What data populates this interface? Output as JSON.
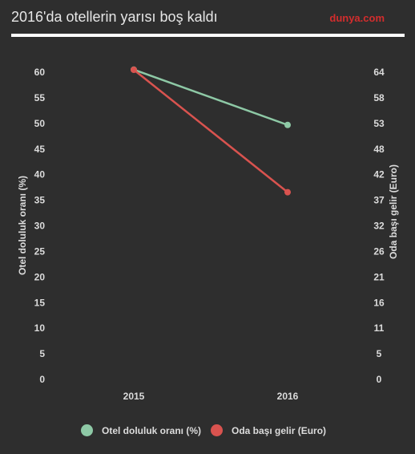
{
  "header": {
    "title": "2016'da otellerin yarısı boş kaldı",
    "brand": "dunya.com",
    "brand_color": "#d32d2d"
  },
  "chart_data": {
    "type": "line",
    "categories": [
      "2015",
      "2016"
    ],
    "ylabel": "Otel doluluk oranı (%)",
    "y2label": "Oda başı gelir (Euro)",
    "yticks": [
      "0",
      "5",
      "10",
      "15",
      "20",
      "25",
      "30",
      "35",
      "40",
      "45",
      "50",
      "55",
      "60"
    ],
    "y2ticks": [
      "0",
      "5",
      "11",
      "16",
      "21",
      "26",
      "32",
      "37",
      "42",
      "48",
      "53",
      "58",
      "64"
    ],
    "ylim": [
      0,
      60
    ],
    "y2lim": [
      0,
      64
    ],
    "grid": false,
    "legend_position": "bottom",
    "series": [
      {
        "name": "Otel doluluk oranı (%)",
        "axis": "left",
        "values": [
          60.5,
          49.7
        ],
        "color": "#8ec9a6"
      },
      {
        "name": "Oda başı gelir (Euro)",
        "axis": "right",
        "values": [
          64.5,
          39.0
        ],
        "color": "#d9534f"
      }
    ]
  }
}
